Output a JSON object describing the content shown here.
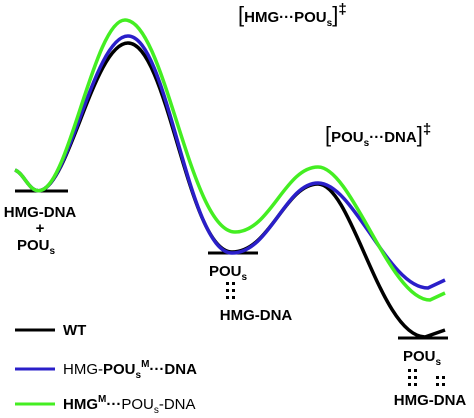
{
  "transition_states": [
    {
      "open": "[",
      "text": "HMG···POU",
      "sub": "s",
      "close": "]",
      "mark": "‡"
    },
    {
      "open": "[",
      "text": "POU",
      "sub": "s",
      "rest": "···DNA",
      "close": "]",
      "mark": "‡"
    }
  ],
  "reactant": {
    "line1": "HMG-DNA",
    "plus": "+",
    "line2": "POU",
    "line2_sub": "s"
  },
  "intermediate": {
    "top": "POU",
    "top_sub": "s",
    "bottom": "HMG-DNA"
  },
  "product": {
    "top": "POU",
    "top_sub": "s",
    "bottom": "HMG-DNA"
  },
  "legend": [
    {
      "parts": [
        "WT"
      ]
    },
    {
      "parts": [
        "HMG-",
        "POU",
        "s",
        "M",
        "···DNA"
      ]
    },
    {
      "parts": [
        "HMG",
        "M",
        "···",
        "POU",
        "s",
        "-DNA"
      ]
    }
  ]
}
